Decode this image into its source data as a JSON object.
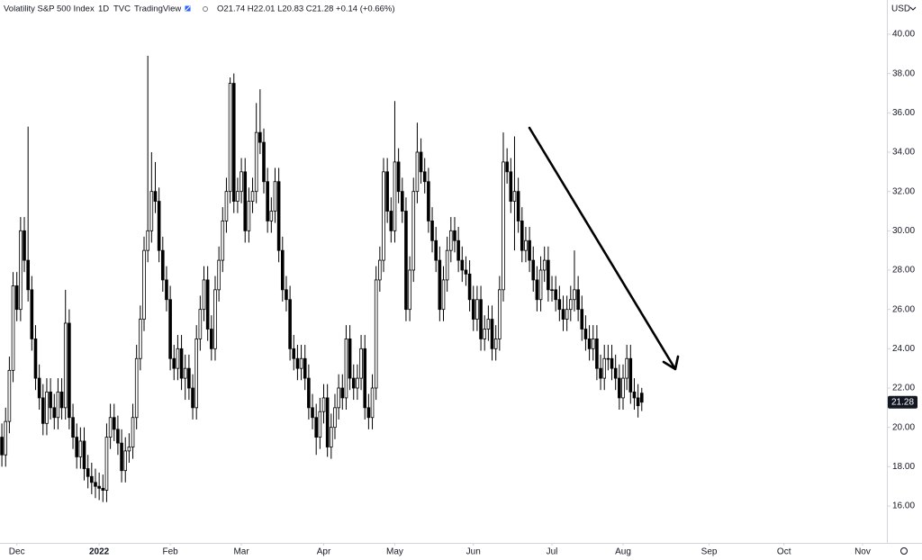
{
  "chart_data": {
    "type": "candlestick",
    "title": "Volatility S&P 500 Index",
    "interval": "1D",
    "exchange": "TVC",
    "source": "TradingView",
    "ohlc_legend": "O21.74 H22.01 L20.83 C21.28 +0.14 (+0.66%)",
    "currency": "USD",
    "grid": false,
    "up_color": "#ffffff",
    "down_color": "#000000",
    "outline_color": "#000000",
    "last_price_color": "#131722",
    "ylim": [
      14.26,
      41.74
    ],
    "yticks": [
      {
        "value": 16,
        "label": "16.00"
      },
      {
        "value": 18,
        "label": "18.00"
      },
      {
        "value": 20,
        "label": "20.00"
      },
      {
        "value": 22,
        "label": "22.00"
      },
      {
        "value": 24,
        "label": "24.00"
      },
      {
        "value": 26,
        "label": "26.00"
      },
      {
        "value": 28,
        "label": "28.00"
      },
      {
        "value": 30,
        "label": "30.00"
      },
      {
        "value": 32,
        "label": "32.00"
      },
      {
        "value": 34,
        "label": "34.00"
      },
      {
        "value": 36,
        "label": "36.00"
      },
      {
        "value": 38,
        "label": "38.00"
      },
      {
        "value": 40,
        "label": "40.00"
      }
    ],
    "categories": [
      null,
      null,
      null,
      null,
      "Dec",
      null,
      null,
      null,
      null,
      null,
      null,
      null,
      null,
      null,
      null,
      null,
      null,
      null,
      null,
      null,
      null,
      null,
      null,
      null,
      null,
      null,
      "2022",
      null,
      null,
      null,
      null,
      null,
      null,
      null,
      null,
      null,
      null,
      null,
      null,
      null,
      null,
      null,
      null,
      null,
      null,
      "Feb",
      null,
      null,
      null,
      null,
      null,
      null,
      null,
      null,
      null,
      null,
      null,
      null,
      null,
      null,
      null,
      null,
      null,
      null,
      "Mar",
      null,
      null,
      null,
      null,
      null,
      null,
      null,
      null,
      null,
      null,
      null,
      null,
      null,
      null,
      null,
      null,
      null,
      null,
      null,
      null,
      null,
      "Apr",
      null,
      null,
      null,
      null,
      null,
      null,
      null,
      null,
      null,
      null,
      null,
      null,
      null,
      null,
      null,
      null,
      null,
      null,
      "May",
      null,
      null,
      null,
      null,
      null,
      null,
      null,
      null,
      null,
      null,
      null,
      null,
      null,
      null,
      null,
      null,
      null,
      null,
      null,
      null,
      "Jun",
      null,
      null,
      null,
      null,
      null,
      null,
      null,
      null,
      null,
      null,
      null,
      null,
      null,
      null,
      null,
      null,
      null,
      null,
      null,
      null,
      "Jul",
      null,
      null,
      null,
      null,
      null,
      null,
      null,
      null,
      null,
      null,
      null,
      null,
      null,
      null,
      null,
      null,
      null,
      null,
      "Aug",
      null,
      null,
      null,
      null,
      null,
      null,
      null,
      null,
      null,
      null,
      null,
      null,
      null,
      null,
      null,
      null,
      null,
      null,
      null,
      null,
      null,
      null,
      "Sep",
      null,
      null,
      null,
      null,
      null,
      null,
      null,
      null,
      null,
      null,
      null,
      null,
      null,
      null,
      null,
      null,
      null,
      null,
      null,
      "Oct",
      null,
      null,
      null,
      null,
      null,
      null,
      null,
      null,
      null,
      null,
      null,
      null,
      null,
      null,
      null,
      null,
      null,
      null,
      null,
      null,
      "Nov",
      null,
      null,
      null,
      null,
      null,
      null
    ],
    "open": [
      19.5,
      18.6,
      20.3,
      22.9,
      27.2,
      26.0,
      30.0,
      28.5,
      27.0,
      24.5,
      22.5,
      21.5,
      20.2,
      21.8,
      21.0,
      20.5,
      21.8,
      21.0,
      25.3,
      20.5,
      19.5,
      18.5,
      19.3,
      17.9,
      17.5,
      17.2,
      17.0,
      16.9,
      16.8,
      19.5,
      20.5,
      19.9,
      19.2,
      17.8,
      18.8,
      19.0,
      20.5,
      23.5,
      25.5,
      29.0,
      30.0,
      32.0,
      31.5,
      29.0,
      27.5,
      26.5,
      23.5,
      23.0,
      24.0,
      22.5,
      23.0,
      22.0,
      21.0,
      24.5,
      26.0,
      27.5,
      25.0,
      24.0,
      27.0,
      28.5,
      30.5,
      32.0,
      37.5,
      31.5,
      32.0,
      33.0,
      30.0,
      31.5,
      32.0,
      35.0,
      34.5,
      32.5,
      30.5,
      31.0,
      32.5,
      29.0,
      27.0,
      26.5,
      24.0,
      23.5,
      23.0,
      23.5,
      22.5,
      21.0,
      20.5,
      19.5,
      20.8,
      21.5,
      19.0,
      20.0,
      21.0,
      22.0,
      21.5,
      24.5,
      22.5,
      22.0,
      22.5,
      24.0,
      21.0,
      20.5,
      22.0,
      27.5,
      28.5,
      33.0,
      31.0,
      30.0,
      33.5,
      32.0,
      31.0,
      26.0,
      28.0,
      32.0,
      34.0,
      33.0,
      32.5,
      30.5,
      29.5,
      28.5,
      26.0,
      27.5,
      29.0,
      30.0,
      29.5,
      28.5,
      28.0,
      27.8,
      26.5,
      25.5,
      26.5,
      24.5,
      25.0,
      25.5,
      24.0,
      24.5,
      27.0,
      33.5,
      33.0,
      31.5,
      32.0,
      30.5,
      29.0,
      29.5,
      28.5,
      27.5,
      26.5,
      28.0,
      28.5,
      27.0,
      27.0,
      26.5,
      26.0,
      25.5,
      26.0,
      26.5,
      27.0,
      26.0,
      25.0,
      24.5,
      24.0,
      24.5,
      23.0,
      22.5,
      23.5,
      23.5,
      23.0,
      22.5,
      21.5,
      22.5,
      23.5,
      21.8,
      21.5,
      21.74,
      null,
      null,
      null,
      null,
      null,
      null,
      null,
      null,
      null,
      null,
      null,
      null,
      null,
      null,
      null,
      null,
      null,
      null,
      null,
      null,
      null,
      null,
      null,
      null,
      null,
      null,
      null,
      null,
      null,
      null,
      null,
      null,
      null,
      null,
      null,
      null,
      null,
      null,
      null,
      null,
      null,
      null,
      null,
      null,
      null,
      null,
      null,
      null,
      null,
      null,
      null,
      null,
      null,
      null,
      null,
      null,
      null,
      null,
      null,
      null,
      null,
      null,
      null,
      null,
      null
    ],
    "high": [
      20.2,
      21.0,
      23.6,
      27.9,
      27.9,
      30.7,
      30.7,
      35.3,
      27.7,
      25.2,
      23.2,
      22.2,
      22.5,
      22.5,
      21.7,
      22.5,
      22.5,
      27.0,
      26.0,
      21.2,
      20.2,
      20.0,
      20.0,
      18.6,
      18.2,
      17.9,
      17.7,
      17.6,
      20.2,
      21.2,
      21.2,
      20.6,
      19.9,
      19.5,
      19.7,
      21.2,
      24.2,
      26.2,
      29.7,
      38.9,
      34.0,
      33.5,
      32.2,
      29.7,
      28.2,
      27.2,
      24.2,
      24.7,
      24.7,
      23.7,
      23.7,
      22.7,
      25.2,
      26.7,
      28.2,
      28.2,
      25.7,
      27.7,
      29.2,
      31.2,
      32.7,
      37.8,
      38.0,
      32.7,
      33.7,
      33.7,
      32.2,
      32.7,
      36.5,
      37.2,
      35.2,
      33.2,
      31.7,
      33.2,
      33.2,
      29.7,
      27.7,
      27.2,
      24.7,
      24.2,
      24.2,
      24.2,
      23.2,
      21.7,
      21.2,
      21.5,
      22.2,
      22.2,
      20.7,
      21.7,
      22.7,
      22.7,
      25.2,
      25.2,
      23.2,
      23.2,
      24.7,
      24.7,
      21.7,
      22.7,
      28.2,
      29.2,
      33.7,
      33.7,
      31.7,
      36.6,
      34.2,
      32.7,
      31.7,
      28.7,
      32.7,
      35.5,
      34.7,
      33.7,
      33.2,
      31.2,
      30.2,
      29.2,
      28.2,
      29.7,
      30.7,
      30.7,
      30.2,
      29.2,
      28.7,
      28.5,
      27.2,
      27.2,
      27.2,
      25.7,
      26.2,
      26.2,
      25.2,
      27.7,
      35.0,
      34.2,
      33.7,
      34.8,
      32.7,
      31.2,
      30.2,
      30.2,
      29.2,
      28.2,
      28.7,
      29.2,
      29.2,
      27.7,
      27.7,
      27.2,
      26.7,
      26.7,
      27.2,
      29.0,
      27.7,
      26.7,
      25.7,
      25.2,
      25.2,
      25.2,
      23.7,
      24.2,
      24.2,
      24.2,
      23.7,
      23.2,
      23.2,
      24.2,
      24.2,
      22.5,
      22.2,
      22.01,
      null,
      null,
      null,
      null,
      null,
      null,
      null,
      null,
      null,
      null,
      null,
      null,
      null,
      null,
      null,
      null,
      null,
      null,
      null,
      null,
      null,
      null,
      null,
      null,
      null,
      null,
      null,
      null,
      null,
      null,
      null,
      null,
      null,
      null,
      null,
      null,
      null,
      null,
      null,
      null,
      null,
      null,
      null,
      null,
      null,
      null,
      null,
      null,
      null,
      null,
      null,
      null,
      null,
      null,
      null,
      null,
      null,
      null,
      null,
      null,
      null,
      null,
      null,
      null,
      null
    ],
    "low": [
      18.0,
      18.0,
      19.7,
      22.3,
      25.4,
      25.4,
      27.9,
      26.4,
      23.9,
      21.9,
      20.9,
      19.6,
      19.6,
      20.4,
      19.9,
      19.9,
      20.4,
      20.4,
      19.9,
      18.9,
      17.9,
      17.9,
      17.3,
      16.9,
      16.6,
      16.4,
      16.3,
      16.2,
      16.2,
      18.9,
      19.3,
      18.6,
      17.2,
      17.2,
      18.2,
      18.4,
      19.9,
      22.9,
      24.9,
      28.4,
      29.4,
      30.9,
      28.4,
      26.9,
      25.9,
      22.9,
      22.4,
      22.4,
      21.9,
      21.4,
      21.4,
      20.4,
      20.4,
      23.9,
      25.4,
      24.4,
      23.4,
      23.4,
      26.4,
      27.9,
      29.9,
      31.4,
      30.9,
      30.9,
      31.4,
      29.4,
      29.4,
      30.9,
      31.4,
      33.9,
      31.9,
      29.9,
      29.9,
      30.4,
      28.4,
      26.4,
      25.9,
      23.4,
      22.9,
      22.4,
      22.4,
      21.9,
      20.4,
      19.9,
      18.6,
      18.9,
      20.2,
      18.5,
      18.4,
      19.4,
      20.4,
      20.9,
      20.9,
      21.9,
      21.4,
      21.4,
      21.9,
      20.4,
      19.9,
      19.9,
      21.4,
      26.9,
      27.9,
      30.4,
      29.4,
      29.4,
      31.4,
      30.4,
      25.4,
      25.4,
      27.4,
      31.4,
      32.4,
      31.9,
      29.9,
      28.9,
      27.9,
      25.4,
      25.4,
      26.9,
      28.4,
      28.9,
      27.9,
      27.4,
      27.2,
      25.9,
      24.9,
      24.9,
      23.9,
      23.9,
      24.4,
      23.4,
      23.4,
      23.9,
      26.4,
      32.4,
      30.9,
      29.0,
      29.9,
      28.4,
      28.4,
      27.9,
      26.9,
      25.9,
      25.9,
      27.4,
      26.4,
      26.4,
      25.9,
      25.4,
      24.9,
      24.9,
      25.4,
      25.9,
      25.4,
      24.4,
      23.9,
      23.4,
      23.4,
      22.4,
      21.9,
      21.9,
      22.9,
      22.4,
      21.9,
      20.9,
      20.9,
      21.9,
      21.2,
      20.9,
      20.5,
      20.83,
      null,
      null,
      null,
      null,
      null,
      null,
      null,
      null,
      null,
      null,
      null,
      null,
      null,
      null,
      null,
      null,
      null,
      null,
      null,
      null,
      null,
      null,
      null,
      null,
      null,
      null,
      null,
      null,
      null,
      null,
      null,
      null,
      null,
      null,
      null,
      null,
      null,
      null,
      null,
      null,
      null,
      null,
      null,
      null,
      null,
      null,
      null,
      null,
      null,
      null,
      null,
      null,
      null,
      null,
      null,
      null,
      null,
      null,
      null,
      null,
      null,
      null,
      null,
      null,
      null
    ],
    "close": [
      18.6,
      20.3,
      22.9,
      27.2,
      26.0,
      30.0,
      28.5,
      27.0,
      24.5,
      22.5,
      21.5,
      20.2,
      21.8,
      21.0,
      20.5,
      21.8,
      21.0,
      25.3,
      20.5,
      19.5,
      18.5,
      19.3,
      17.9,
      17.5,
      17.2,
      17.0,
      16.9,
      16.8,
      19.5,
      20.5,
      19.9,
      19.2,
      17.8,
      18.8,
      19.0,
      20.5,
      23.5,
      25.5,
      29.0,
      30.0,
      32.0,
      31.5,
      29.0,
      27.5,
      26.5,
      23.5,
      23.0,
      24.0,
      22.5,
      23.0,
      22.0,
      21.0,
      24.5,
      26.0,
      27.5,
      25.0,
      24.0,
      27.0,
      28.5,
      30.5,
      32.0,
      37.5,
      31.5,
      32.0,
      33.0,
      30.0,
      31.5,
      32.0,
      35.0,
      34.5,
      32.5,
      30.5,
      31.0,
      32.5,
      29.0,
      27.0,
      26.5,
      24.0,
      23.5,
      23.0,
      23.5,
      22.5,
      21.0,
      20.5,
      19.5,
      20.8,
      21.5,
      19.0,
      20.0,
      21.0,
      22.0,
      21.5,
      24.5,
      22.5,
      22.0,
      22.5,
      24.0,
      21.0,
      20.5,
      22.0,
      27.5,
      28.5,
      33.0,
      31.0,
      30.0,
      33.5,
      32.0,
      31.0,
      26.0,
      28.0,
      32.0,
      34.0,
      33.0,
      32.5,
      30.5,
      29.5,
      28.5,
      26.0,
      27.5,
      29.0,
      30.0,
      29.5,
      28.5,
      28.0,
      27.8,
      26.5,
      25.5,
      26.5,
      24.5,
      25.0,
      25.5,
      24.0,
      24.5,
      27.0,
      33.5,
      33.0,
      31.5,
      32.0,
      30.5,
      29.0,
      29.5,
      28.5,
      27.5,
      26.5,
      28.0,
      28.5,
      27.0,
      27.0,
      26.5,
      26.0,
      25.5,
      26.0,
      26.5,
      27.0,
      26.0,
      25.0,
      24.5,
      24.0,
      24.5,
      23.0,
      22.5,
      23.5,
      23.5,
      23.0,
      22.5,
      21.5,
      22.5,
      23.5,
      21.8,
      21.5,
      21.1,
      21.28,
      null,
      null,
      null,
      null,
      null,
      null,
      null,
      null,
      null,
      null,
      null,
      null,
      null,
      null,
      null,
      null,
      null,
      null,
      null,
      null,
      null,
      null,
      null,
      null,
      null,
      null,
      null,
      null,
      null,
      null,
      null,
      null,
      null,
      null,
      null,
      null,
      null,
      null,
      null,
      null,
      null,
      null,
      null,
      null,
      null,
      null,
      null,
      null,
      null,
      null,
      null,
      null,
      null,
      null,
      null,
      null,
      null,
      null,
      null,
      null,
      null,
      null,
      null,
      null,
      null
    ]
  }
}
